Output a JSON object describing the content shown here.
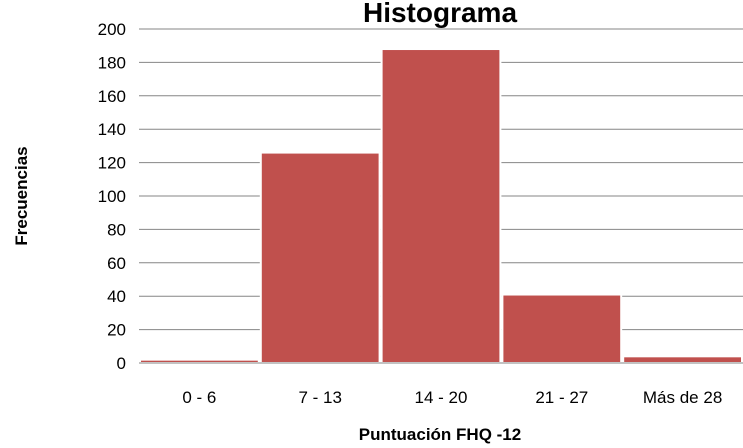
{
  "chart_data": {
    "type": "bar",
    "title": "Histograma",
    "xlabel": "Puntuación FHQ -12",
    "ylabel": "Frecuencias",
    "categories": [
      "0 - 6",
      "7 - 13",
      "14 - 20",
      "21 - 27",
      "Más de 28"
    ],
    "values": [
      2,
      126,
      188,
      41,
      4
    ],
    "ylim": [
      0,
      200
    ],
    "yticks": [
      0,
      20,
      40,
      60,
      80,
      100,
      120,
      140,
      160,
      180,
      200
    ],
    "grid": true,
    "legend": "none",
    "bar_color": "#c0504d",
    "bar_edge_color": "#ffffff",
    "grid_color": "#868686"
  }
}
